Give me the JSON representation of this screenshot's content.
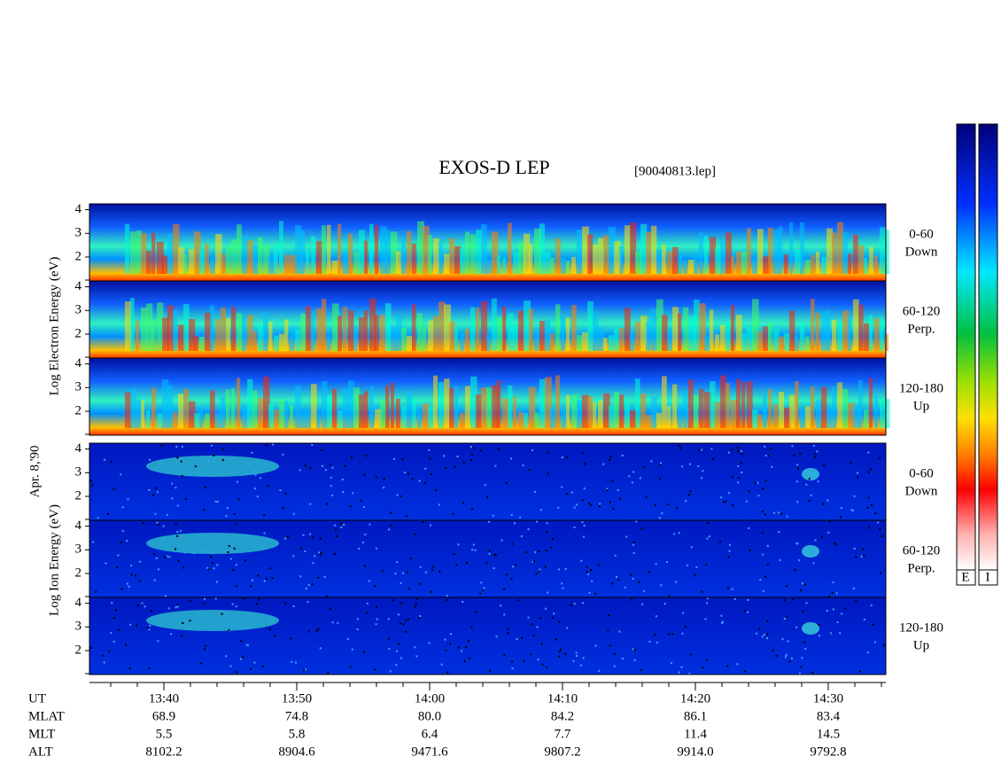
{
  "header": {
    "title": "EXOS-D LEP",
    "file": "[90040813.lep]"
  },
  "date": "Apr. 8,'90",
  "electron_axis_label": "Log Electron Energy (eV)",
  "ion_axis_label": "Log Ion Energy (eV)",
  "yticks": [
    "2",
    "3",
    "4"
  ],
  "pitch_angles": [
    {
      "range": "0-60",
      "direction": "Down"
    },
    {
      "range": "60-120",
      "direction": "Perp."
    },
    {
      "range": "120-180",
      "direction": "Up"
    }
  ],
  "time_ticks": [
    "13:40",
    "13:50",
    "14:00",
    "14:10",
    "14:20",
    "14:30"
  ],
  "ephemeris": [
    {
      "name": "UT"
    },
    {
      "name": "MLAT",
      "values": [
        "68.9",
        "74.8",
        "80.0",
        "84.2",
        "86.1",
        "83.4"
      ]
    },
    {
      "name": "MLT",
      "values": [
        "5.5",
        "5.8",
        "6.4",
        "7.7",
        "11.4",
        "14.5"
      ]
    },
    {
      "name": "ALT",
      "values": [
        "8102.2",
        "8904.6",
        "9471.6",
        "9807.2",
        "9914.0",
        "9792.8"
      ]
    }
  ],
  "colorbar_labels": [
    "E",
    "I"
  ]
}
